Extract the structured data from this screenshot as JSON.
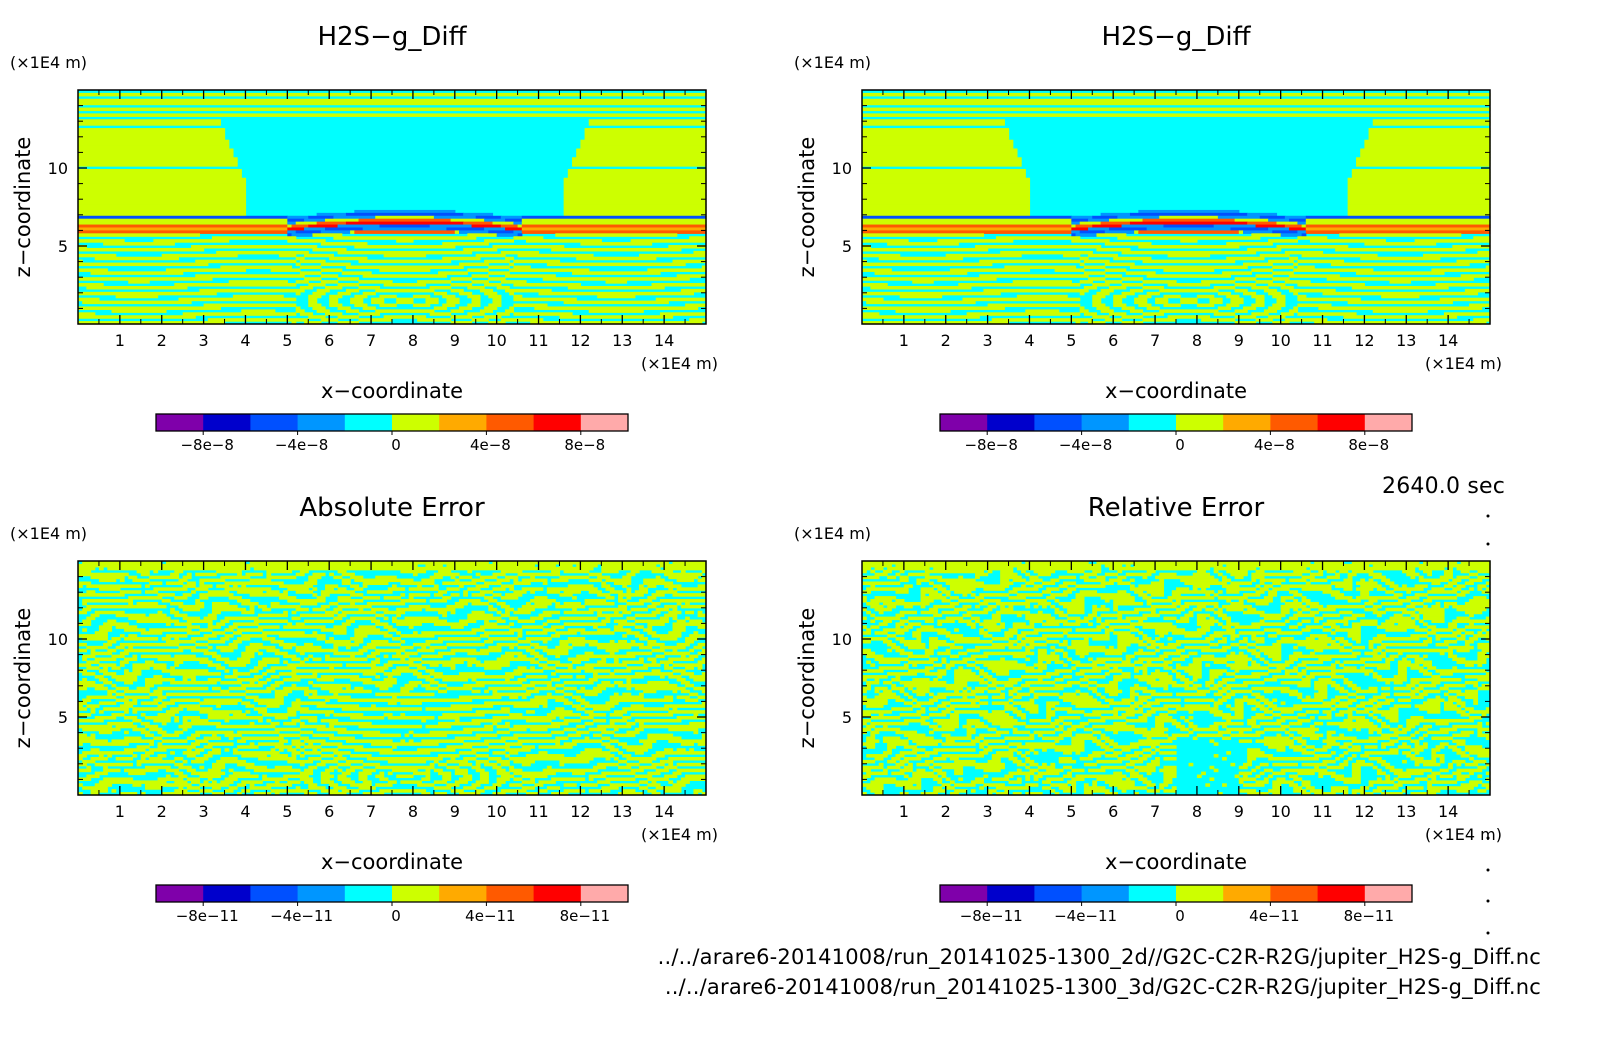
{
  "footer": {
    "time_label": "2640.0 sec",
    "file_1": "../../arare6-20141008/run_20141025-1300_2d//G2C-C2R-R2G/jupiter_H2S-g_Diff.nc",
    "file_2": "../../arare6-20141008/run_20141025-1300_3d/G2C-C2R-R2G/jupiter_H2S-g_Diff.nc"
  },
  "colors": {
    "levels": [
      "#7f00aa",
      "#0000cc",
      "#0050ff",
      "#0096ff",
      "#00ffff",
      "#cdff00",
      "#ffaa00",
      "#ff5a00",
      "#ff0000",
      "#ffaaaa"
    ]
  },
  "chart_data": [
    {
      "type": "heatmap",
      "pattern": "field",
      "title": "H2S−g_Diff",
      "xlabel": "x−coordinate",
      "ylabel": "z−coordinate",
      "x_unit": "(×1E4 m)",
      "z_unit": "(×1E4 m)",
      "xlim": [
        0,
        15
      ],
      "ylim": [
        0,
        15
      ],
      "x_ticks": [
        "1",
        "2",
        "3",
        "4",
        "5",
        "6",
        "7",
        "8",
        "9",
        "10",
        "11",
        "12",
        "13",
        "14"
      ],
      "z_ticks": [
        "5",
        "10"
      ],
      "colorbar_labels": [
        "−8e−8",
        "−4e−8",
        "0",
        "4e−8",
        "8e−8"
      ]
    },
    {
      "type": "heatmap",
      "pattern": "field",
      "title": "H2S−g_Diff",
      "xlabel": "x−coordinate",
      "ylabel": "z−coordinate",
      "x_unit": "(×1E4 m)",
      "z_unit": "(×1E4 m)",
      "xlim": [
        0,
        15
      ],
      "ylim": [
        0,
        15
      ],
      "x_ticks": [
        "1",
        "2",
        "3",
        "4",
        "5",
        "6",
        "7",
        "8",
        "9",
        "10",
        "11",
        "12",
        "13",
        "14"
      ],
      "z_ticks": [
        "5",
        "10"
      ],
      "colorbar_labels": [
        "−8e−8",
        "−4e−8",
        "0",
        "4e−8",
        "8e−8"
      ]
    },
    {
      "type": "heatmap",
      "pattern": "abs",
      "title": "Absolute Error",
      "xlabel": "x−coordinate",
      "ylabel": "z−coordinate",
      "x_unit": "(×1E4 m)",
      "z_unit": "(×1E4 m)",
      "xlim": [
        0,
        15
      ],
      "ylim": [
        0,
        15
      ],
      "x_ticks": [
        "1",
        "2",
        "3",
        "4",
        "5",
        "6",
        "7",
        "8",
        "9",
        "10",
        "11",
        "12",
        "13",
        "14"
      ],
      "z_ticks": [
        "5",
        "10"
      ],
      "colorbar_labels": [
        "−8e−11",
        "−4e−11",
        "0",
        "4e−11",
        "8e−11"
      ]
    },
    {
      "type": "heatmap",
      "pattern": "rel",
      "title": "Relative Error",
      "xlabel": "x−coordinate",
      "ylabel": "z−coordinate",
      "x_unit": "(×1E4 m)",
      "z_unit": "(×1E4 m)",
      "xlim": [
        0,
        15
      ],
      "ylim": [
        0,
        15
      ],
      "x_ticks": [
        "1",
        "2",
        "3",
        "4",
        "5",
        "6",
        "7",
        "8",
        "9",
        "10",
        "11",
        "12",
        "13",
        "14"
      ],
      "z_ticks": [
        "5",
        "10"
      ],
      "colorbar_labels": [
        "−8e−11",
        "−4e−11",
        "0",
        "4e−11",
        "8e−11"
      ]
    }
  ]
}
